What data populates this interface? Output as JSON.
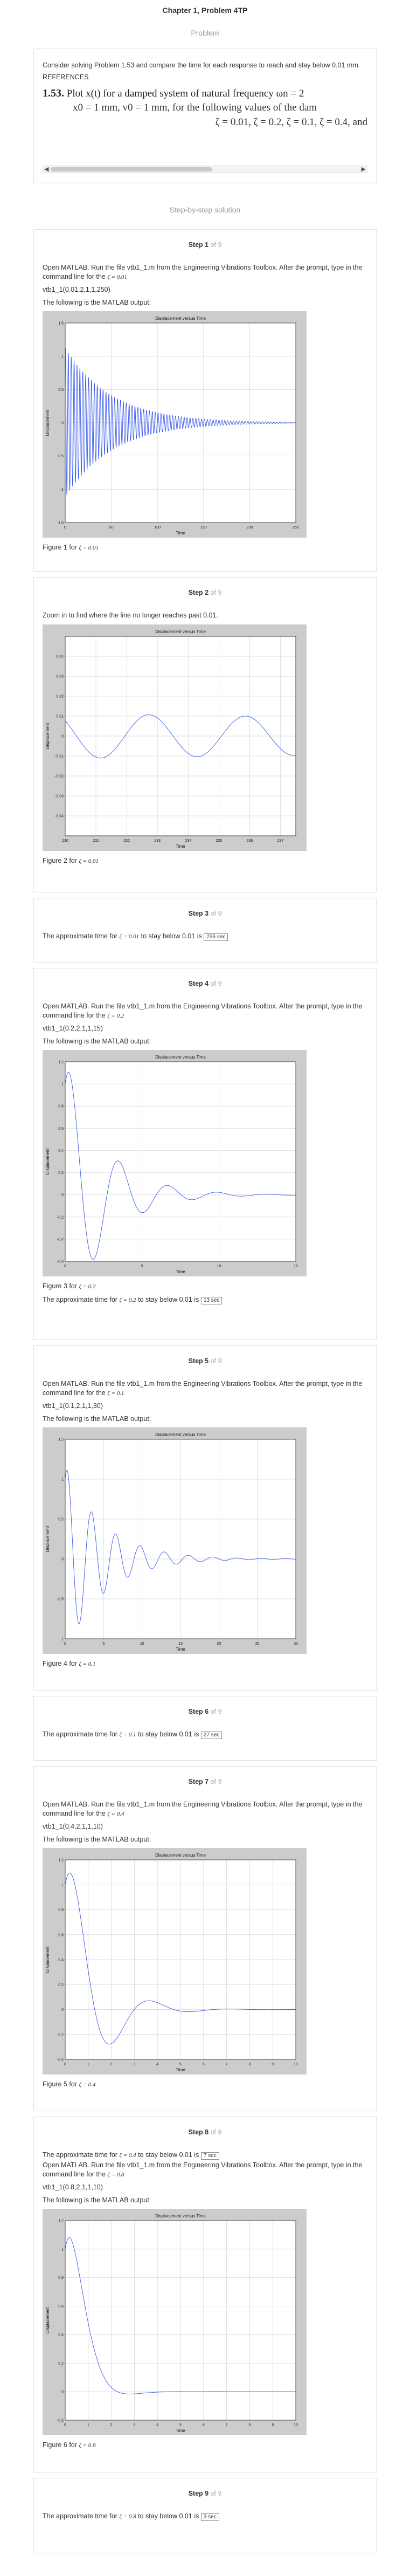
{
  "header": {
    "title": "Chapter 1, Problem 4TP",
    "subtitle": "Problem"
  },
  "problem": {
    "text": "Consider solving Problem 1.53 and compare the time for each response to reach and stay below 0.01 mm.",
    "refs": "REFERENCES",
    "num": "1.53.",
    "line1": "Plot x(t) for a damped system of natural frequency ωn = 2",
    "line2": "x0 = 1 mm, v0 = 1 mm, for the following values of the dam",
    "line3": "ζ = 0.01, ζ = 0.2, ζ = 0.1, ζ = 0.4, and"
  },
  "sbs_title": "Step-by-step solution",
  "steps": [
    {
      "label": "Step 1",
      "of": "of 9",
      "text": "Open MATLAB. Run the file vtb1_1.m from the Engineering Vibrations Toolbox. After the prompt, type in the command line for the",
      "zeta_text": "ζ = 0.01",
      "cmd": "vtb1_1(0.01,2,1,1,250)",
      "out": "The following is the MATLAB output:",
      "caption": "Figure 1 for",
      "cap_zeta": "ζ = 0.01"
    },
    {
      "label": "Step 2",
      "of": "of 9",
      "text": "Zoom in to find where the line no longer reaches past 0.01.",
      "caption": "Figure 2 for",
      "cap_zeta": "ζ = 0.01"
    },
    {
      "label": "Step 3",
      "of": "of 9",
      "text": "The approximate time for",
      "zeta_text": "ζ = 0.01",
      "text2": "to stay below 0.01 is",
      "ans": "236 sec"
    },
    {
      "label": "Step 4",
      "of": "of 9",
      "text": "Open MATLAB. Run the file vtb1_1.m from the Engineering Vibrations Toolbox. After the prompt, type in the command line for the",
      "zeta_text": "ζ = 0.2",
      "cmd": "vtb1_1(0.2,2,1,1,15)",
      "out": "The following is the MATLAB output:",
      "caption": "Figure 3 for",
      "cap_zeta": "ζ = 0.2",
      "after": "The approximate time for",
      "after_zeta": "ζ = 0.2",
      "after2": "to stay below 0.01 is",
      "ans": "13 sec"
    },
    {
      "label": "Step 5",
      "of": "of 9",
      "text": "Open MATLAB. Run the file vtb1_1.m from the Engineering Vibrations Toolbox. After the prompt, type in the command line for the",
      "zeta_text": "ζ = 0.1",
      "cmd": "vtb1_1(0.1,2,1,1,30)",
      "out": "The following is the MATLAB output:",
      "caption": "Figure 4 for",
      "cap_zeta": "ζ = 0.1"
    },
    {
      "label": "Step 6",
      "of": "of 9",
      "text": "The approximate time for",
      "zeta_text": "ζ = 0.1",
      "text2": "to stay below 0.01 is",
      "ans": "27 sec"
    },
    {
      "label": "Step 7",
      "of": "of 9",
      "text": "Open MATLAB. Run the file vtb1_1.m from the Engineering Vibrations Toolbox. After the prompt, type in the command line for the",
      "zeta_text": "ζ = 0.4",
      "cmd": "vtb1_1(0.4,2,1,1,10)",
      "out": "The following is the MATLAB output:",
      "caption": "Figure 5 for",
      "cap_zeta": "ζ = 0.4"
    },
    {
      "label": "Step 8",
      "of": "of 9",
      "pre": "The approximate time for",
      "pre_zeta": "ζ = 0.4",
      "pre2": "to stay below 0.01 is",
      "pre_ans": "7 sec",
      "text": "Open MATLAB. Run the file vtb1_1.m from the Engineering Vibrations Toolbox. After the prompt, type in the command line for the",
      "zeta_text": "ζ = 0.8",
      "cmd": "vtb1_1(0.8,2,1,1,10)",
      "out": "The following is the MATLAB output:",
      "caption": "Figure 6 for",
      "cap_zeta": "ζ = 0.8"
    },
    {
      "label": "Step 9",
      "of": "of 9",
      "text": "The approximate time for",
      "zeta_text": "ζ = 0.8",
      "text2": "to stay below 0.01 is",
      "ans": "3 sec"
    }
  ],
  "chart_data": [
    {
      "type": "line",
      "title": "Displacement versus Time",
      "xlabel": "Time",
      "ylabel": "Displacement",
      "xlim": [
        0,
        250
      ],
      "ylim": [
        -1.5,
        1.5
      ],
      "xticks": [
        0,
        50,
        100,
        150,
        200,
        250
      ],
      "yticks": [
        -1.5,
        -1,
        -0.5,
        0,
        0.5,
        1,
        1.5
      ],
      "zeta": 0.01,
      "wn": 2,
      "x0": 1,
      "v0": 1,
      "grid": true
    },
    {
      "type": "line",
      "title": "Displacement versus Time",
      "xlabel": "Time",
      "ylabel": "Displacement",
      "xlim": [
        230,
        237.5
      ],
      "ylim": [
        -0.05,
        0.05
      ],
      "xticks": [
        230,
        231,
        232,
        233,
        234,
        235,
        236,
        237
      ],
      "yticks": [
        -0.04,
        -0.03,
        -0.02,
        -0.01,
        0,
        0.01,
        0.02,
        0.03,
        0.04
      ],
      "zeta": 0.01,
      "wn": 2,
      "x0": 1,
      "v0": 1,
      "grid": true
    },
    {
      "type": "line",
      "title": "Displacement versus Time",
      "xlabel": "Time",
      "ylabel": "Displacement",
      "xlim": [
        0,
        15
      ],
      "ylim": [
        -0.6,
        1.2
      ],
      "xticks": [
        0,
        5,
        10,
        15
      ],
      "yticks": [
        -0.6,
        -0.4,
        -0.2,
        0,
        0.2,
        0.4,
        0.6,
        0.8,
        1,
        1.2
      ],
      "zeta": 0.2,
      "wn": 2,
      "x0": 1,
      "v0": 1,
      "grid": true
    },
    {
      "type": "line",
      "title": "Displacement versus Time",
      "xlabel": "Time",
      "ylabel": "Displacement",
      "xlim": [
        0,
        30
      ],
      "ylim": [
        -1,
        1.5
      ],
      "xticks": [
        0,
        5,
        10,
        15,
        20,
        25,
        30
      ],
      "yticks": [
        -1,
        -0.5,
        0,
        0.5,
        1,
        1.5
      ],
      "zeta": 0.1,
      "wn": 2,
      "x0": 1,
      "v0": 1,
      "grid": true
    },
    {
      "type": "line",
      "title": "Displacement versus Time",
      "xlabel": "Time",
      "ylabel": "Displacement",
      "xlim": [
        0,
        10
      ],
      "ylim": [
        -0.4,
        1.2
      ],
      "xticks": [
        0,
        1,
        2,
        3,
        4,
        5,
        6,
        7,
        8,
        9,
        10
      ],
      "yticks": [
        -0.4,
        -0.2,
        0,
        0.2,
        0.4,
        0.6,
        0.8,
        1,
        1.2
      ],
      "zeta": 0.4,
      "wn": 2,
      "x0": 1,
      "v0": 1,
      "grid": true
    },
    {
      "type": "line",
      "title": "Displacement versus Time",
      "xlabel": "Time",
      "ylabel": "Displacement",
      "xlim": [
        0,
        10
      ],
      "ylim": [
        -0.2,
        1.2
      ],
      "xticks": [
        0,
        1,
        2,
        3,
        4,
        5,
        6,
        7,
        8,
        9,
        10
      ],
      "yticks": [
        -0.2,
        0,
        0.2,
        0.4,
        0.6,
        0.8,
        1,
        1.2
      ],
      "zeta": 0.8,
      "wn": 2,
      "x0": 1,
      "v0": 1,
      "grid": true
    }
  ],
  "colors": {
    "line": "#3355ee",
    "plot_bg": "#cccccc",
    "card_border": "#e2e2e2",
    "muted": "#999999"
  }
}
